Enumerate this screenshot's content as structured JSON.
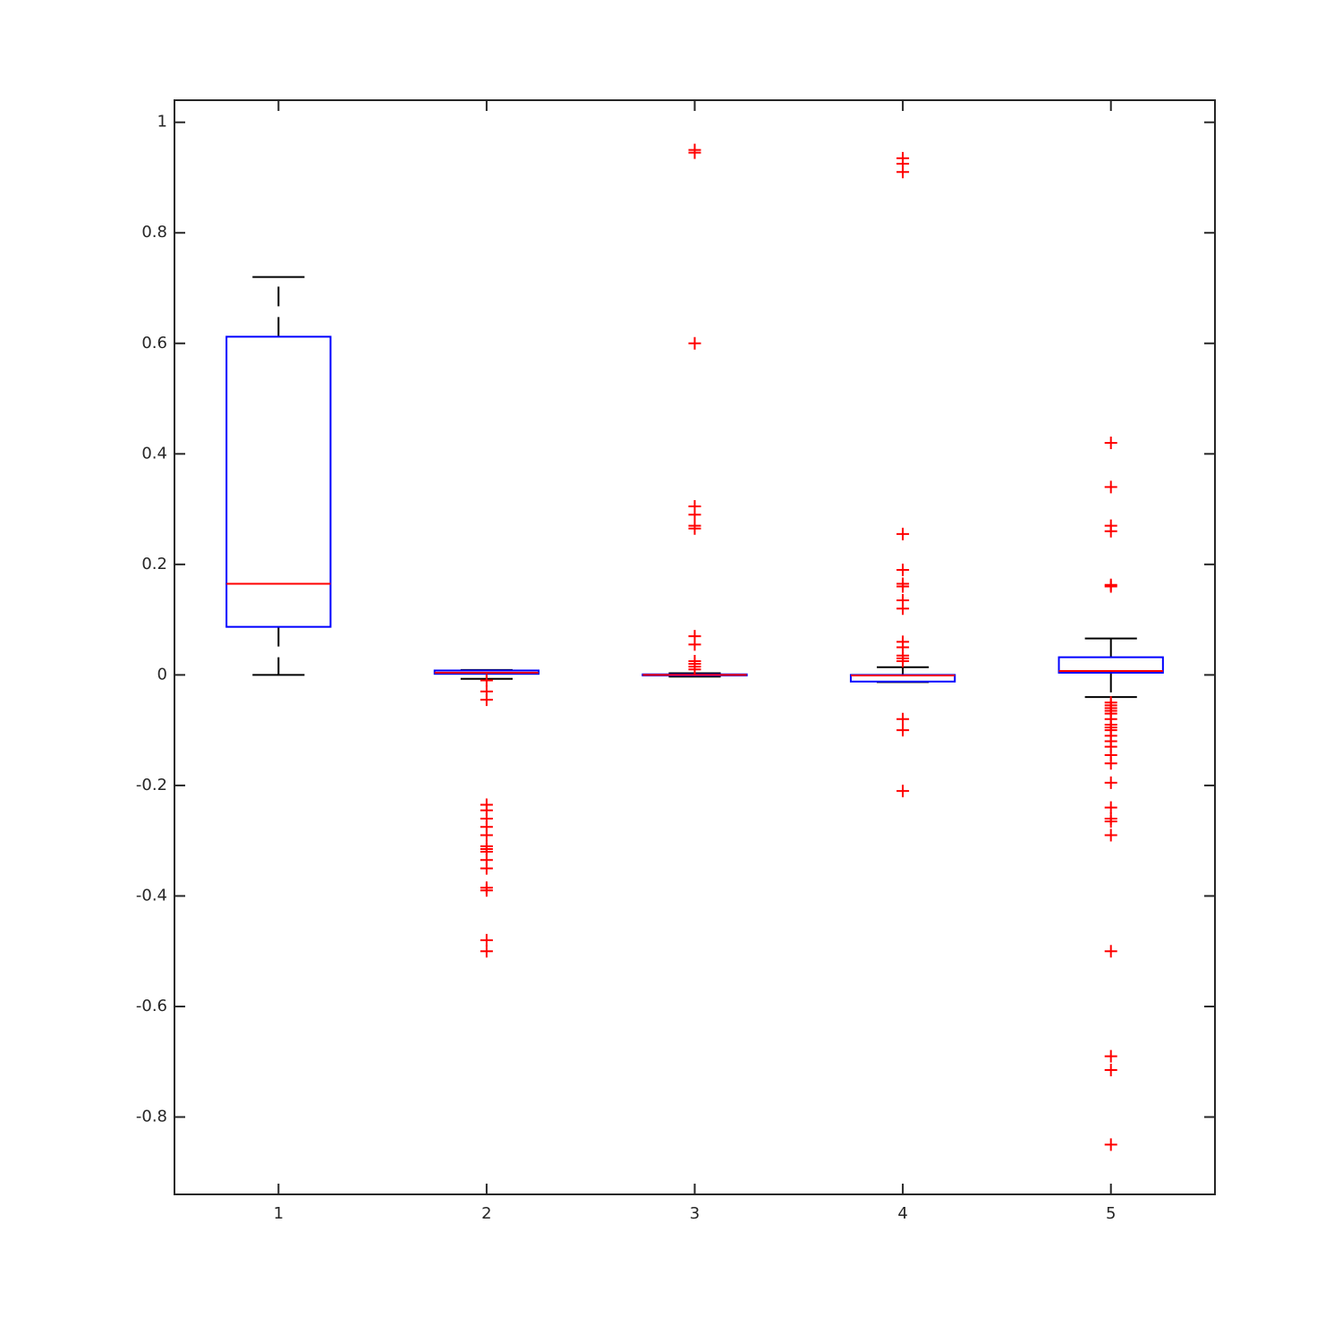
{
  "chart_data": {
    "type": "box",
    "categories": [
      "1",
      "2",
      "3",
      "4",
      "5"
    ],
    "xlim": [
      0.5,
      5.5
    ],
    "ylim": [
      -0.94,
      1.04
    ],
    "yticks": [
      -0.8,
      -0.6,
      -0.4,
      -0.2,
      0,
      0.2,
      0.4,
      0.6,
      0.8,
      1
    ],
    "box_color": "#0000ff",
    "median_color": "#ff0000",
    "whisker_color": "#000000",
    "outlier_color": "#ff0000",
    "boxes": [
      {
        "low": 0,
        "q1": 0.087,
        "median": 0.165,
        "q3": 0.612,
        "high": 0.72,
        "outliers": []
      },
      {
        "low": -0.007,
        "q1": 0.002,
        "median": 0.004,
        "q3": 0.008,
        "high": 0.009,
        "outliers": [
          -0.01,
          -0.03,
          -0.045,
          -0.235,
          -0.245,
          -0.26,
          -0.275,
          -0.29,
          -0.31,
          -0.315,
          -0.32,
          -0.335,
          -0.35,
          -0.385,
          -0.39,
          -0.48,
          -0.5
        ]
      },
      {
        "low": -0.003,
        "q1": -0.001,
        "median": 0,
        "q3": 0.001,
        "high": 0.003,
        "outliers": [
          0.95,
          0.945,
          0.6,
          0.305,
          0.29,
          0.27,
          0.265,
          0.07,
          0.055,
          0.025,
          0.02,
          0.015,
          0.01
        ]
      },
      {
        "low": -0.013,
        "q1": -0.012,
        "median": -0.001,
        "q3": 0,
        "high": 0.014,
        "outliers": [
          0.935,
          0.925,
          0.91,
          0.255,
          0.19,
          0.165,
          0.16,
          0.135,
          0.12,
          0.06,
          0.05,
          0.035,
          0.03,
          0.025,
          -0.08,
          -0.1,
          -0.21
        ]
      },
      {
        "low": -0.04,
        "q1": 0.004,
        "median": 0.007,
        "q3": 0.032,
        "high": 0.066,
        "outliers": [
          0.42,
          0.34,
          0.27,
          0.26,
          0.163,
          0.16,
          -0.05,
          -0.055,
          -0.06,
          -0.065,
          -0.07,
          -0.08,
          -0.09,
          -0.095,
          -0.1,
          -0.11,
          -0.12,
          -0.13,
          -0.145,
          -0.16,
          -0.195,
          -0.24,
          -0.26,
          -0.265,
          -0.29,
          -0.5,
          -0.69,
          -0.715,
          -0.85
        ]
      }
    ]
  }
}
